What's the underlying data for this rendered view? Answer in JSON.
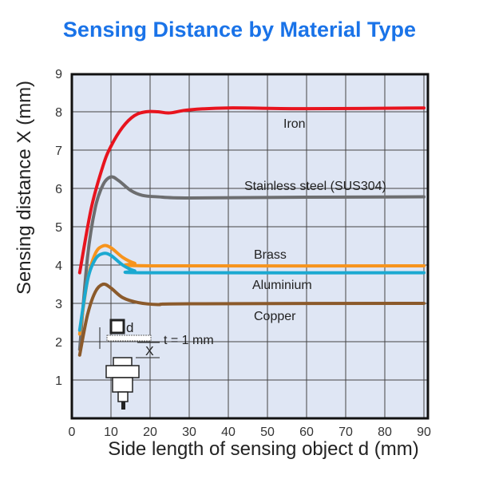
{
  "chart_data": {
    "type": "line",
    "title": "Sensing Distance by Material Type",
    "xlabel": "Side length of sensing object d (mm)",
    "ylabel": "Sensing distance X (mm)",
    "xlim": [
      0,
      92
    ],
    "ylim": [
      0,
      9
    ],
    "xticks": [
      0,
      10,
      20,
      30,
      40,
      50,
      60,
      70,
      80,
      90
    ],
    "yticks": [
      1,
      2,
      3,
      4,
      5,
      6,
      7,
      8,
      9
    ],
    "grid": true,
    "series": [
      {
        "name": "Iron",
        "color": "#e8141e",
        "points": [
          [
            2,
            3.8
          ],
          [
            5,
            5.5
          ],
          [
            8,
            6.6
          ],
          [
            10,
            7.1
          ],
          [
            13,
            7.6
          ],
          [
            16,
            7.9
          ],
          [
            19,
            8.0
          ],
          [
            22,
            8.0
          ],
          [
            25,
            7.97
          ],
          [
            30,
            8.05
          ],
          [
            40,
            8.1
          ],
          [
            60,
            8.08
          ],
          [
            90,
            8.1
          ]
        ]
      },
      {
        "name": "Stainless steel (SUS304)",
        "color": "#6d6e70",
        "points": [
          [
            2,
            1.8
          ],
          [
            4,
            4.2
          ],
          [
            6,
            5.5
          ],
          [
            8,
            6.1
          ],
          [
            10,
            6.3
          ],
          [
            12,
            6.2
          ],
          [
            15,
            5.95
          ],
          [
            18,
            5.82
          ],
          [
            22,
            5.78
          ],
          [
            30,
            5.75
          ],
          [
            60,
            5.77
          ],
          [
            90,
            5.78
          ]
        ]
      },
      {
        "name": "Brass",
        "color": "#f7941d",
        "points": [
          [
            2,
            2.2
          ],
          [
            4,
            3.6
          ],
          [
            6,
            4.3
          ],
          [
            8,
            4.5
          ],
          [
            10,
            4.45
          ],
          [
            13,
            4.2
          ],
          [
            16,
            4.05
          ],
          [
            20,
            3.98
          ],
          [
            90,
            3.98
          ]
        ]
      },
      {
        "name": "Aluminium",
        "color": "#1ba9d1",
        "points": [
          [
            2,
            2.3
          ],
          [
            4,
            3.6
          ],
          [
            6,
            4.15
          ],
          [
            8,
            4.3
          ],
          [
            10,
            4.25
          ],
          [
            13,
            4.0
          ],
          [
            16,
            3.85
          ],
          [
            20,
            3.8
          ],
          [
            90,
            3.8
          ]
        ]
      },
      {
        "name": "Copper",
        "color": "#8b5a2b",
        "points": [
          [
            2,
            1.65
          ],
          [
            4,
            2.7
          ],
          [
            6,
            3.3
          ],
          [
            8,
            3.5
          ],
          [
            10,
            3.4
          ],
          [
            13,
            3.15
          ],
          [
            17,
            3.02
          ],
          [
            22,
            2.97
          ],
          [
            30,
            2.99
          ],
          [
            90,
            3.0
          ]
        ]
      }
    ],
    "inset": {
      "d_label": "d",
      "x_label": "X",
      "t_label": "t = 1 mm"
    }
  }
}
